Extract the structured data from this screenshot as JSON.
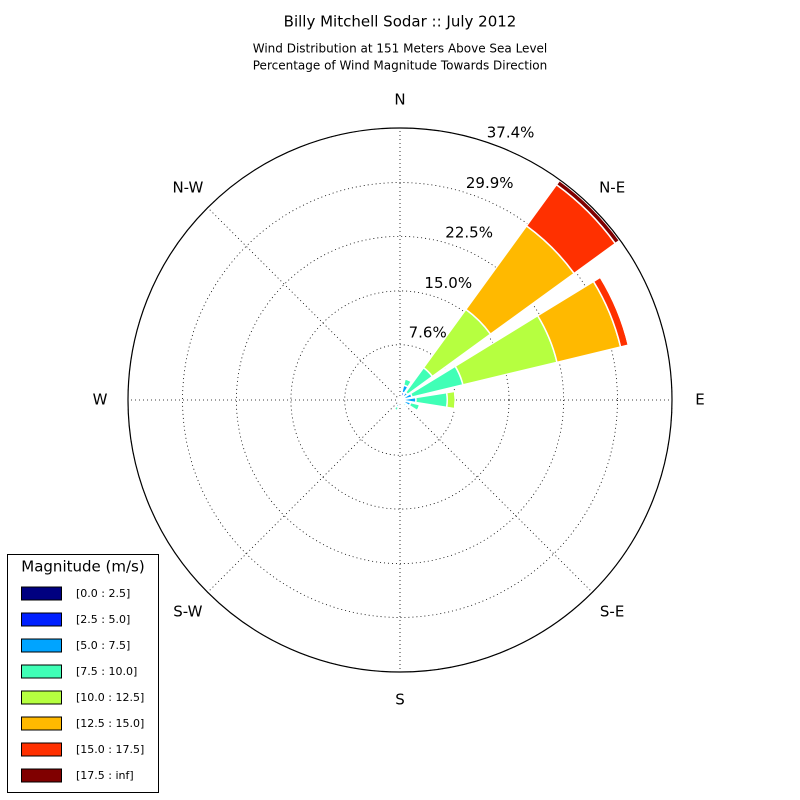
{
  "chart_data": {
    "type": "windrose",
    "title": "Billy Mitchell Sodar :: July 2012",
    "subtitle": [
      "Wind Distribution at 151 Meters Above Sea Level",
      "Percentage of Wind Magnitude Towards Direction"
    ],
    "legend_title": "Magnitude (m/s)",
    "legend_position": "lower left",
    "grid": true,
    "x": [
      0,
      22.5,
      45,
      67.5,
      90,
      112.5,
      135,
      157.5,
      180,
      202.5,
      225,
      247.5,
      270,
      292.5,
      315,
      337.5
    ],
    "xlim": [
      0,
      360
    ],
    "xticks": [
      {
        "value": 0,
        "label": "N"
      },
      {
        "value": 45,
        "label": "N-E"
      },
      {
        "value": 90,
        "label": "E"
      },
      {
        "value": 135,
        "label": "S-E"
      },
      {
        "value": 180,
        "label": "S"
      },
      {
        "value": 225,
        "label": "S-W"
      },
      {
        "value": 270,
        "label": "W"
      },
      {
        "value": 315,
        "label": "N-W"
      }
    ],
    "ylim": [
      0,
      37.4
    ],
    "yticks": [
      {
        "value": 7.6,
        "label": "7.6%"
      },
      {
        "value": 15.0,
        "label": "15.0%"
      },
      {
        "value": 22.5,
        "label": "22.5%"
      },
      {
        "value": 29.9,
        "label": "29.9%"
      },
      {
        "value": 37.4,
        "label": "37.4%"
      }
    ],
    "series": [
      {
        "name": "[0.0 : 2.5]",
        "color": "#000080",
        "values": [
          0.1,
          0.3,
          0.3,
          0.2,
          0.2,
          0.2,
          0.1,
          0.1,
          0.1,
          0.1,
          0.1,
          0.1,
          0.1,
          0.1,
          0.1,
          0.1
        ]
      },
      {
        "name": "[2.5 : 5.0]",
        "color": "#0020ff",
        "values": [
          0.2,
          0.8,
          0.4,
          0.5,
          0.5,
          0.5,
          0.3,
          0.2,
          0.2,
          0.3,
          0.1,
          0.1,
          0.1,
          0.1,
          0.1,
          0.1
        ]
      },
      {
        "name": "[5.0 : 7.5]",
        "color": "#00a4ff",
        "values": [
          0.1,
          1.0,
          0.6,
          1.0,
          1.5,
          0.8,
          0.4,
          0.2,
          0.2,
          0.6,
          0.1,
          0,
          0,
          0,
          0,
          0.1
        ]
      },
      {
        "name": "[7.5 : 10.0]",
        "color": "#40ffb6",
        "values": [
          0,
          0.9,
          4.2,
          7.2,
          4.3,
          1.3,
          0.3,
          0,
          0,
          0.5,
          0,
          0,
          0,
          0,
          0,
          0
        ]
      },
      {
        "name": "[10.0 : 12.5]",
        "color": "#b6ff40",
        "values": [
          0,
          0,
          9.9,
          13.3,
          1.1,
          0,
          0,
          0,
          0,
          0,
          0,
          0,
          0,
          0,
          0,
          0
        ]
      },
      {
        "name": "[12.5 : 15.0]",
        "color": "#ffb900",
        "values": [
          0,
          0,
          14.2,
          9.0,
          0,
          0,
          0,
          0,
          0,
          0,
          0,
          0,
          0,
          0,
          0,
          0
        ]
      },
      {
        "name": "[15.0 : 17.5]",
        "color": "#ff3000",
        "values": [
          0,
          0,
          7.0,
          1.1,
          0,
          0,
          0,
          0,
          0,
          0,
          0,
          0,
          0,
          0,
          0,
          0
        ]
      },
      {
        "name": "[17.5 : inf]",
        "color": "#800000",
        "values": [
          0,
          0,
          0.7,
          0,
          0,
          0,
          0,
          0,
          0,
          0,
          0,
          0,
          0,
          0,
          0,
          0
        ]
      }
    ]
  }
}
